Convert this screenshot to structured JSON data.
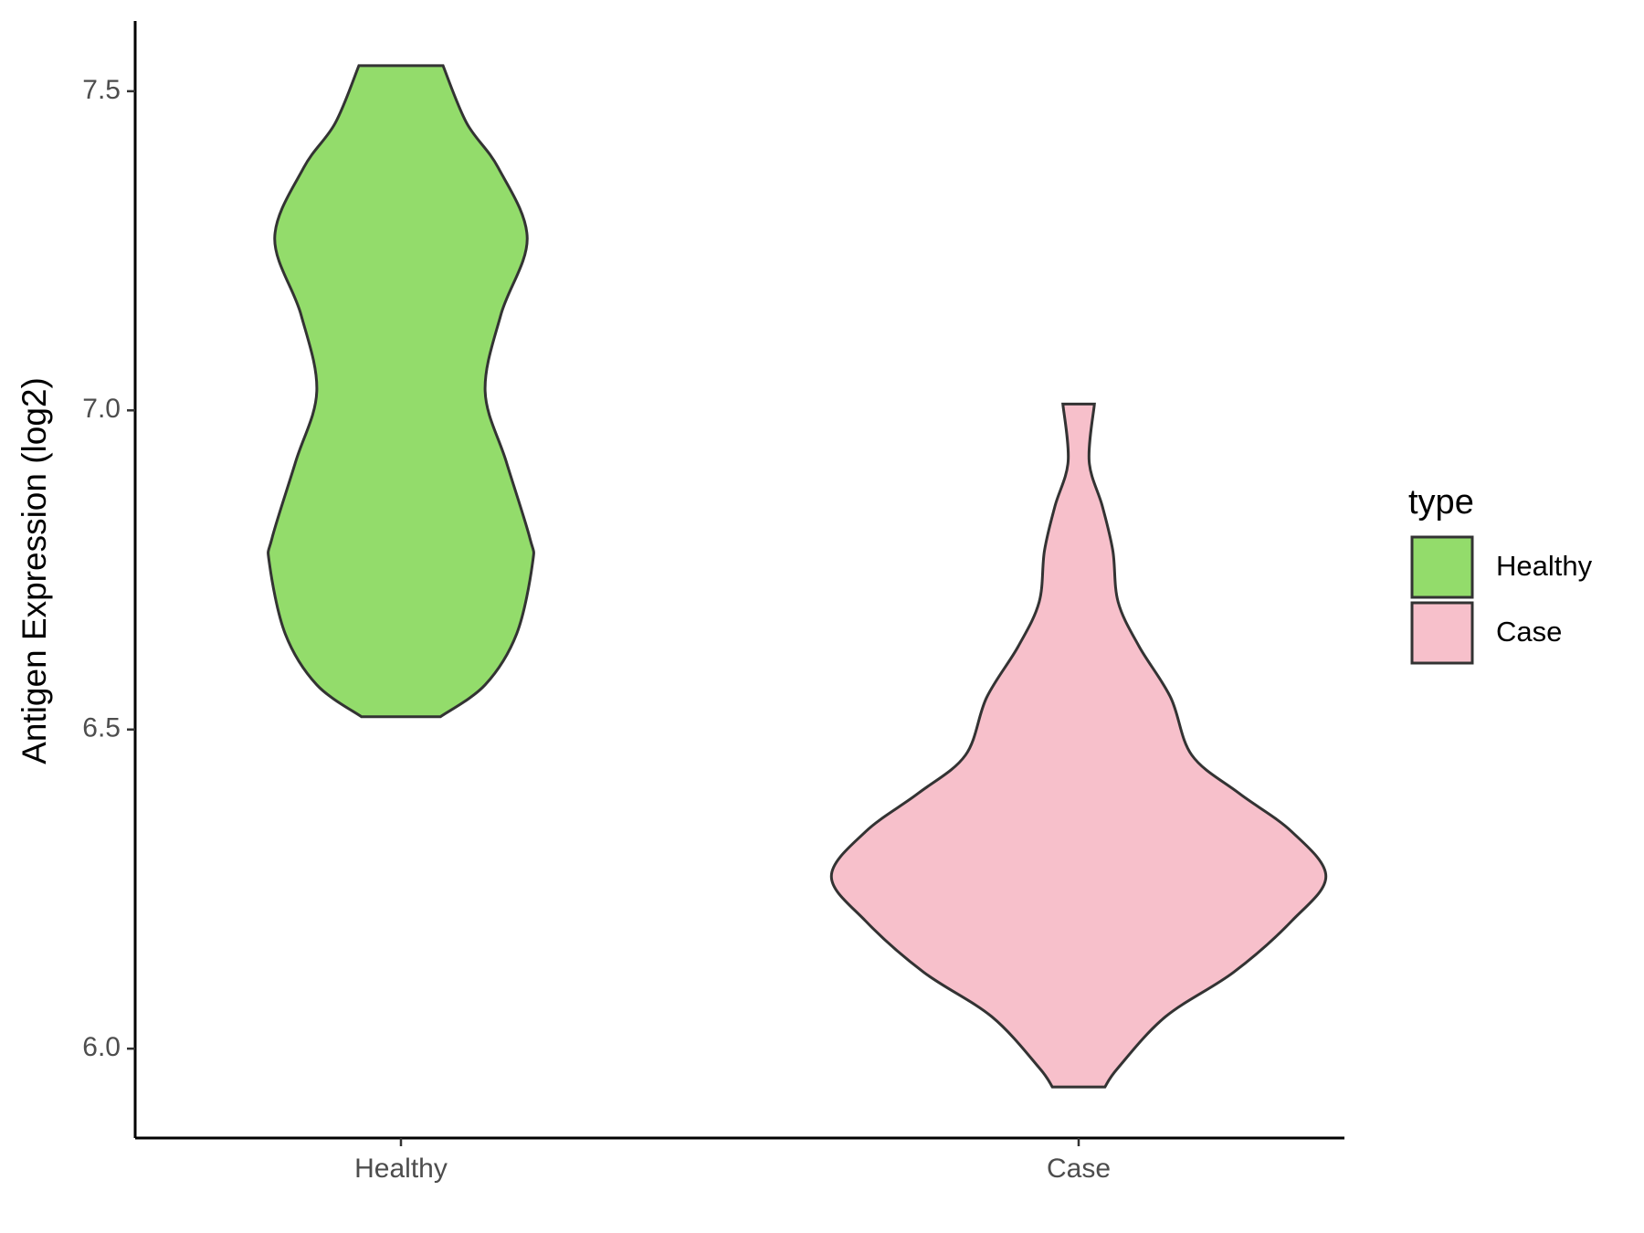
{
  "chart_data": {
    "type": "violin",
    "y_label": "Antigen Expression (log2)",
    "categories": [
      "Healthy",
      "Case"
    ],
    "ylim": [
      5.86,
      7.61
    ],
    "yticks": [
      {
        "value": 6,
        "label": "6.0"
      },
      6.5,
      {
        "value": 7,
        "label": "7.0"
      },
      7.5
    ],
    "legend_title": "type",
    "legend_position": "right",
    "series": [
      {
        "name": "Healthy",
        "color": "#93dc6b",
        "y": [
          7.54,
          7.45,
          7.38,
          7.27,
          7.15,
          7.03,
          6.92,
          6.8,
          6.76,
          6.65,
          6.57,
          6.52
        ],
        "density": [
          0.16,
          0.25,
          0.37,
          0.48,
          0.38,
          0.32,
          0.4,
          0.49,
          0.5,
          0.44,
          0.32,
          0.15
        ]
      },
      {
        "name": "Case",
        "color": "#f7c0cb",
        "y": [
          7.01,
          6.92,
          6.85,
          6.78,
          6.7,
          6.63,
          6.55,
          6.46,
          6.4,
          6.34,
          6.27,
          6.2,
          6.12,
          6.05,
          5.97,
          5.94
        ],
        "density": [
          0.06,
          0.04,
          0.09,
          0.13,
          0.15,
          0.23,
          0.35,
          0.43,
          0.61,
          0.81,
          0.94,
          0.81,
          0.59,
          0.33,
          0.15,
          0.1
        ]
      }
    ]
  }
}
